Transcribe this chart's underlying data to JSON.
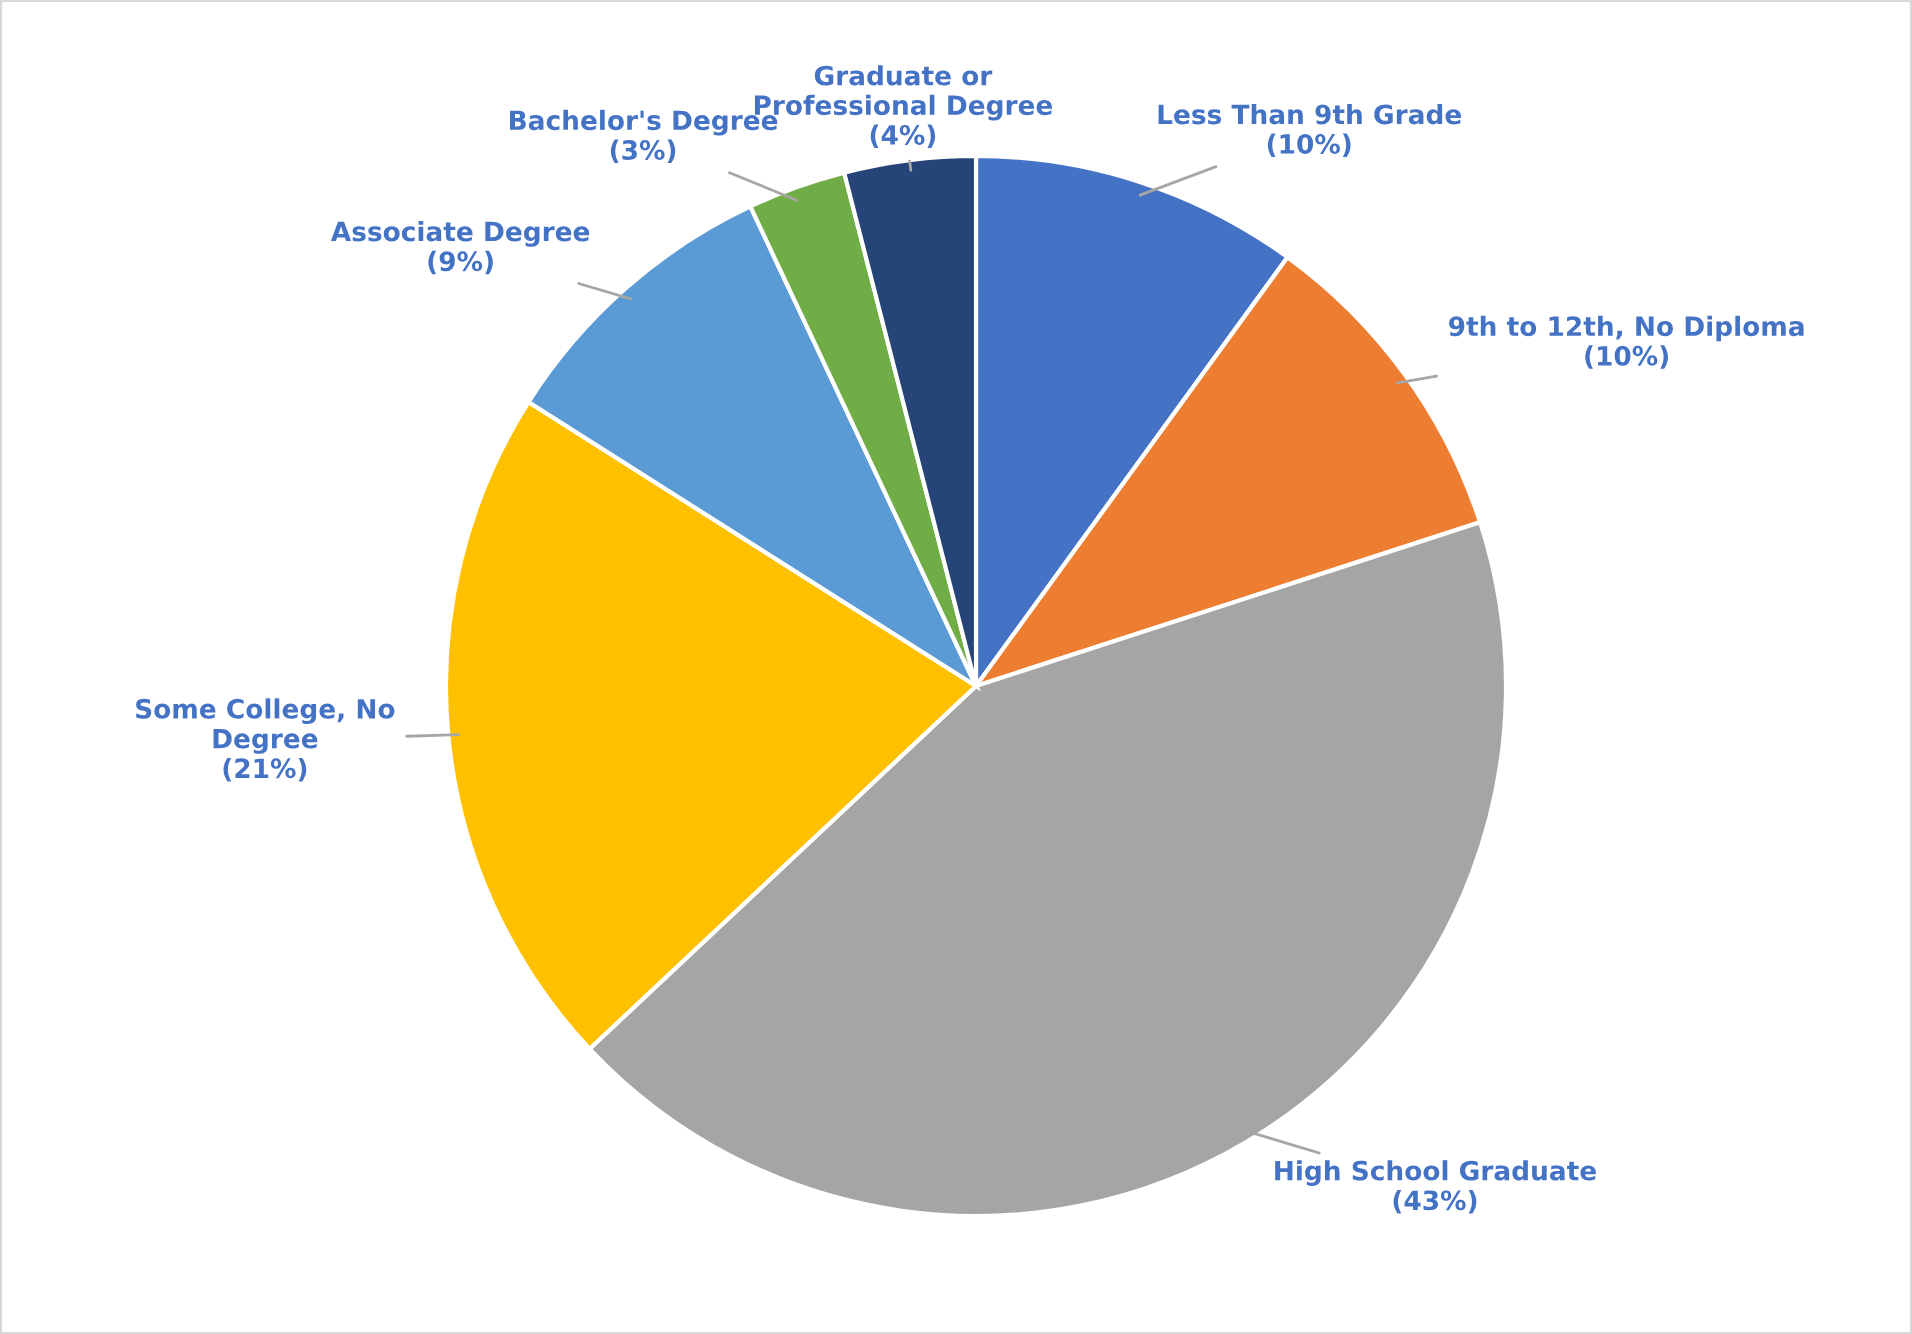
{
  "chart_data": {
    "type": "pie",
    "categories": [
      "Less Than 9th Grade",
      "9th to 12th, No Diploma",
      "High School Graduate",
      "Some College, No\nDegree",
      "Associate Degree",
      "Bachelor's Degree",
      "Graduate or\nProfessional Degree"
    ],
    "values": [
      10,
      10,
      43,
      21,
      9,
      3,
      4
    ],
    "value_labels": [
      "(10%)",
      "(10%)",
      "(43%)",
      "(21%)",
      "(9%)",
      "(3%)",
      "(4%)"
    ],
    "colors": [
      "#4472c4",
      "#ed7d31",
      "#a5a5a5",
      "#ffc000",
      "#5b9bd5",
      "#70ad47",
      "#264478"
    ],
    "legend": false
  }
}
